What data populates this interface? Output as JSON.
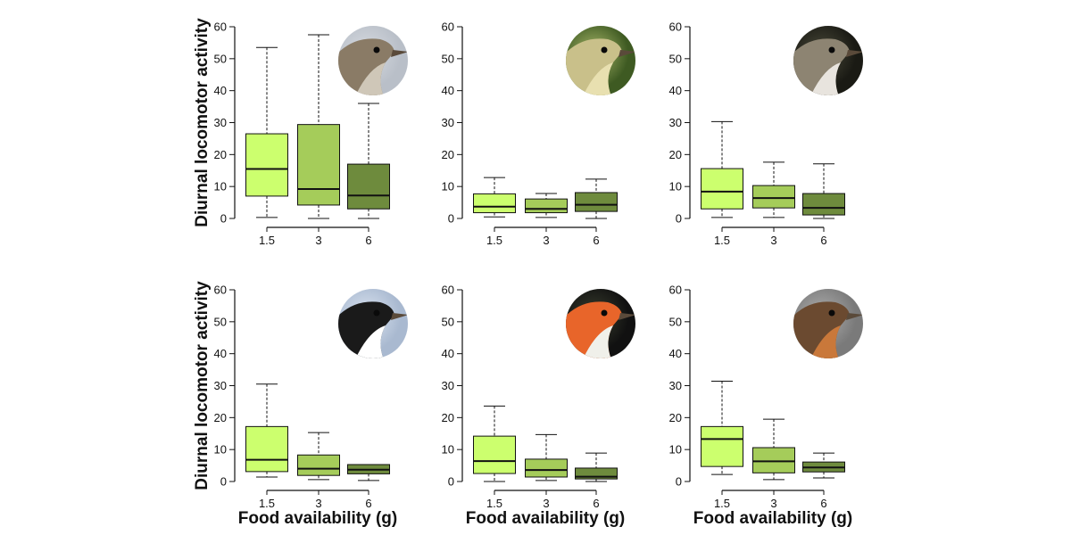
{
  "ylabel": "Diurnal locomotor activity",
  "xlabel": "Food availability (g)",
  "colors": {
    "1.5": "#ccff6e",
    "3": "#a5cc5a",
    "6": "#6e8b3d"
  },
  "chart_data": [
    {
      "type": "box",
      "categories": [
        "1.5",
        "3",
        "6"
      ],
      "ylim": [
        0,
        60
      ],
      "yticks": [
        0,
        10,
        20,
        30,
        40,
        50,
        60
      ],
      "photo": "grey-warbler-head",
      "boxes": [
        {
          "min": 0.3,
          "q1": 7,
          "median": 15.5,
          "q3": 26.5,
          "max": 53.5
        },
        {
          "min": 0,
          "q1": 4.2,
          "median": 9.2,
          "q3": 29.4,
          "max": 57.5
        },
        {
          "min": 0,
          "q1": 3,
          "median": 7.2,
          "q3": 17,
          "max": 36
        }
      ]
    },
    {
      "type": "box",
      "categories": [
        "1.5",
        "3",
        "6"
      ],
      "ylim": [
        0,
        60
      ],
      "yticks": [
        0,
        10,
        20,
        30,
        40,
        50,
        60
      ],
      "photo": "yellowish-warbler-head",
      "boxes": [
        {
          "min": 0.5,
          "q1": 1.8,
          "median": 3.7,
          "q3": 7.7,
          "max": 12.8
        },
        {
          "min": 0.3,
          "q1": 1.8,
          "median": 3,
          "q3": 6.1,
          "max": 7.8
        },
        {
          "min": 0,
          "q1": 2.2,
          "median": 4.3,
          "q3": 8.1,
          "max": 12.3
        }
      ]
    },
    {
      "type": "box",
      "categories": [
        "1.5",
        "3",
        "6"
      ],
      "ylim": [
        0,
        60
      ],
      "yticks": [
        0,
        10,
        20,
        30,
        40,
        50,
        60
      ],
      "photo": "whitethroat-head",
      "boxes": [
        {
          "min": 0.3,
          "q1": 3,
          "median": 8.4,
          "q3": 15.6,
          "max": 30.3
        },
        {
          "min": 0.3,
          "q1": 3.3,
          "median": 6.4,
          "q3": 10.3,
          "max": 17.6
        },
        {
          "min": 0,
          "q1": 1.1,
          "median": 3.3,
          "q3": 7.8,
          "max": 17.1
        }
      ]
    },
    {
      "type": "box",
      "categories": [
        "1.5",
        "3",
        "6"
      ],
      "ylim": [
        0,
        60
      ],
      "yticks": [
        0,
        10,
        20,
        30,
        40,
        50,
        60
      ],
      "photo": "flycatcher-head",
      "boxes": [
        {
          "min": 1.4,
          "q1": 3.1,
          "median": 6.8,
          "q3": 17.2,
          "max": 30.5
        },
        {
          "min": 0.6,
          "q1": 1.9,
          "median": 4,
          "q3": 8.3,
          "max": 15.3
        },
        {
          "min": 0.3,
          "q1": 2.4,
          "median": 3.7,
          "q3": 5.3,
          "max": 5.3
        }
      ]
    },
    {
      "type": "box",
      "categories": [
        "1.5",
        "3",
        "6"
      ],
      "ylim": [
        0,
        60
      ],
      "yticks": [
        0,
        10,
        20,
        30,
        40,
        50,
        60
      ],
      "photo": "robin-head",
      "boxes": [
        {
          "min": 0,
          "q1": 2.5,
          "median": 6.4,
          "q3": 14.2,
          "max": 23.6
        },
        {
          "min": 0.3,
          "q1": 1.4,
          "median": 3.6,
          "q3": 7,
          "max": 14.7
        },
        {
          "min": 0,
          "q1": 0.8,
          "median": 1.5,
          "q3": 4.2,
          "max": 8.9
        }
      ]
    },
    {
      "type": "box",
      "categories": [
        "1.5",
        "3",
        "6"
      ],
      "ylim": [
        0,
        60
      ],
      "yticks": [
        0,
        10,
        20,
        30,
        40,
        50,
        60
      ],
      "photo": "whinchat-head",
      "boxes": [
        {
          "min": 2.2,
          "q1": 4.7,
          "median": 13.3,
          "q3": 17.2,
          "max": 31.4
        },
        {
          "min": 0.6,
          "q1": 2.7,
          "median": 6.3,
          "q3": 10.6,
          "max": 19.5
        },
        {
          "min": 1.1,
          "q1": 3,
          "median": 4.4,
          "q3": 6.1,
          "max": 8.9
        }
      ]
    }
  ]
}
